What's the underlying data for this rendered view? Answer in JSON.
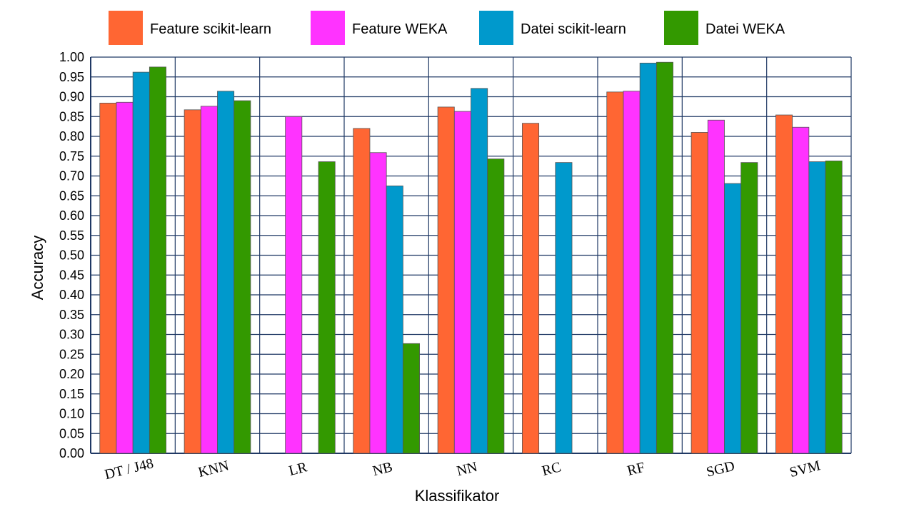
{
  "chart_data": {
    "type": "bar",
    "xlabel": "Klassifikator",
    "ylabel": "Accuracy",
    "ylim": [
      0,
      1.0
    ],
    "ytick_step": 0.05,
    "grid": true,
    "legend_position": "top",
    "categories": [
      "DT / J48",
      "KNN",
      "LR",
      "NB",
      "NN",
      "RC",
      "RF",
      "SGD",
      "SVM"
    ],
    "series": [
      {
        "name": "Feature scikit-learn",
        "color": "#FF6633",
        "values": [
          0.884,
          0.867,
          null,
          0.82,
          0.874,
          0.833,
          0.912,
          0.81,
          0.854
        ]
      },
      {
        "name": "Feature WEKA",
        "color": "#FF33FF",
        "values": [
          0.886,
          0.876,
          0.85,
          0.759,
          0.863,
          null,
          0.914,
          0.841,
          0.823
        ]
      },
      {
        "name": "Datei scikit-learn",
        "color": "#0099CC",
        "values": [
          0.962,
          0.914,
          null,
          0.675,
          0.921,
          0.734,
          0.985,
          0.681,
          0.736
        ]
      },
      {
        "name": "Datei WEKA",
        "color": "#339900",
        "values": [
          0.975,
          0.89,
          0.736,
          0.277,
          0.743,
          null,
          0.987,
          0.734,
          0.738
        ]
      }
    ]
  }
}
